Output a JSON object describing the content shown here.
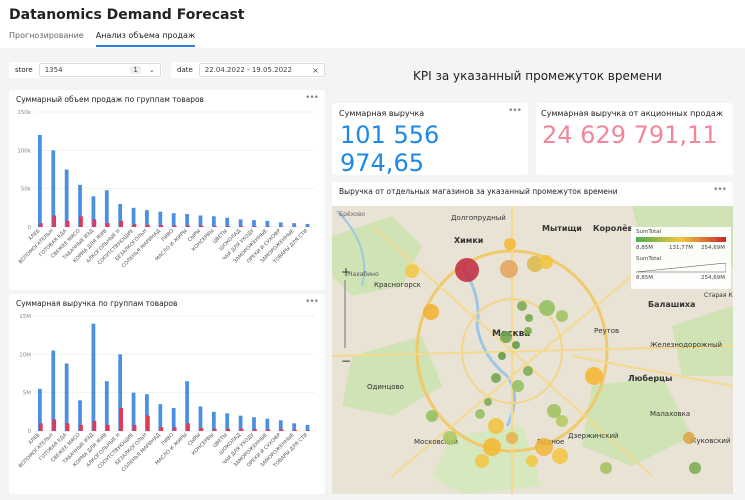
{
  "app": {
    "title": "Datanomics Demand Forecast",
    "tabs": [
      "Прогнозирование",
      "Анализ объема продаж"
    ]
  },
  "filters": {
    "store_label": "store",
    "store_value": "1354",
    "store_count": "1",
    "date_label": "date",
    "date_value": "22.04.2022 - 19.05.2022"
  },
  "chart1": {
    "title": "Суммарный объем продаж по группам товаров",
    "yticks": [
      "150k",
      "100k",
      "50k",
      "0"
    ]
  },
  "chart2": {
    "title": "Суммарная выручка по группам товаров",
    "yticks": [
      "15M",
      "10M",
      "5M",
      "0"
    ]
  },
  "chart_data": [
    {
      "type": "bar",
      "title": "Суммарный объем продаж по группам товаров",
      "ylim": [
        0,
        150000
      ],
      "categories": [
        "хлеб",
        "вспомогательн",
        "готовая еда",
        "свежее мясо",
        "табачные изд",
        "корма для жив",
        "алкогольные н",
        "сопутствующие",
        "безалкогольн",
        "соленья маринад",
        "пиво",
        "масло и жиры",
        "сыры",
        "консервы",
        "цветы",
        "шоколад",
        "чаи для уходу",
        "замороженные",
        "орехи и сухофр",
        "замороженные",
        "товары для сти"
      ],
      "series": [
        {
          "values": [
            120000,
            100000,
            75000,
            55000,
            40000,
            48000,
            30000,
            25000,
            22000,
            20000,
            18000,
            17000,
            15000,
            14000,
            12000,
            10000,
            9000,
            8000,
            6000,
            5000,
            4000
          ]
        },
        {
          "values": [
            5000,
            15000,
            8000,
            14000,
            10000,
            5000,
            8000,
            4000,
            3000,
            2500,
            2000,
            2000,
            1800,
            1500,
            1200,
            1000,
            800,
            700,
            500,
            400,
            300
          ]
        }
      ]
    },
    {
      "type": "bar",
      "title": "Суммарная выручка по группам товаров",
      "ylim": [
        0,
        15000000
      ],
      "categories": [
        "хлеб",
        "вспомогательн",
        "готовая еда",
        "свежее мясо",
        "табачные изд",
        "корма для жив",
        "алкогольные н",
        "сопутствующие",
        "безалкогольн",
        "соленья маринад",
        "пиво",
        "масло и жиры",
        "сыры",
        "консервы",
        "цветы",
        "шоколад",
        "чаи для уходу",
        "замороженные",
        "орехи и сухофр",
        "замороженные",
        "товары для сти"
      ],
      "series": [
        {
          "values": [
            5500000,
            10500000,
            8800000,
            4000000,
            14000000,
            6500000,
            10000000,
            5000000,
            4800000,
            3500000,
            3000000,
            6500000,
            3200000,
            2500000,
            2300000,
            2000000,
            1800000,
            1600000,
            1400000,
            1000000,
            800000
          ]
        },
        {
          "values": [
            1000000,
            1500000,
            1000000,
            800000,
            1300000,
            800000,
            3000000,
            800000,
            2000000,
            500000,
            500000,
            1000000,
            400000,
            300000,
            300000,
            300000,
            250000,
            200000,
            200000,
            150000,
            100000
          ]
        }
      ]
    }
  ],
  "kpi": {
    "heading": "KPI за указанный промежуток времени",
    "revenue_label": "Суммарная выручка",
    "revenue_value": "101 556 974,65",
    "promo_label": "Суммарная выручка от акционных продаж",
    "promo_value": "24 629 791,11",
    "revenue_color": "#1e88e5",
    "promo_color": "#f0879b"
  },
  "map": {
    "title": "Выручка от отдельных магазинов за указанный промежуток времени",
    "labels": [
      "Химки",
      "Мытищи",
      "Королёв",
      "Долгопрудный",
      "Красногорск",
      "Москва",
      "Реутов",
      "Балашиха",
      "Железнодорожный",
      "Одинцово",
      "Люберцы",
      "Малаховка",
      "Дзержинский",
      "Жуковский",
      "Московский",
      "Видное",
      "Старая К",
      "Брёхово",
      "Нахабино"
    ],
    "legend_color_title": "SumTotal",
    "legend_color_min": "8,85M",
    "legend_color_mid": "131,77M",
    "legend_color_max": "254,69M",
    "legend_size_title": "SumTotal",
    "legend_size_min": "8,85M",
    "legend_size_max": "254,69M"
  }
}
